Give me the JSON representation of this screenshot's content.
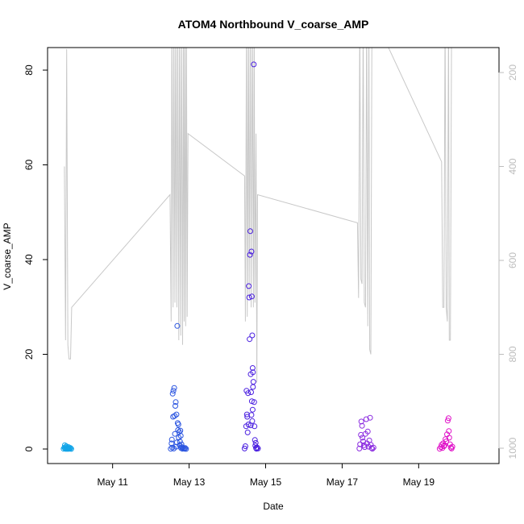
{
  "chart_data": {
    "type": "scatter",
    "title": "ATOM4 Northbound V_coarse_AMP",
    "xlabel": "Date",
    "ylabel": "V_coarse_AMP",
    "x_start_label": "May 9",
    "xlim_days": [
      9.3,
      21.1
    ],
    "ylim": [
      0,
      85
    ],
    "y2lim_reversed": [
      100,
      1060
    ],
    "x_ticks": [
      {
        "day": 11,
        "label": "May 11"
      },
      {
        "day": 13,
        "label": "May 13"
      },
      {
        "day": 15,
        "label": "May 15"
      },
      {
        "day": 17,
        "label": "May 17"
      },
      {
        "day": 19,
        "label": "May 19"
      }
    ],
    "y_ticks": [
      0,
      20,
      40,
      60,
      80
    ],
    "y2_ticks": [
      200,
      400,
      600,
      800,
      1000
    ],
    "depth_line_color": "#c8c8c8",
    "depth_line": [
      [
        9.74,
        400
      ],
      [
        9.77,
        770
      ],
      [
        9.8,
        150
      ],
      [
        9.83,
        780
      ],
      [
        9.86,
        810
      ],
      [
        9.9,
        810
      ],
      [
        9.93,
        700
      ],
      [
        12.5,
        460
      ],
      [
        12.53,
        730
      ],
      [
        12.55,
        80
      ],
      [
        12.58,
        700
      ],
      [
        12.6,
        80
      ],
      [
        12.63,
        690
      ],
      [
        12.65,
        80
      ],
      [
        12.68,
        700
      ],
      [
        12.7,
        80
      ],
      [
        12.73,
        770
      ],
      [
        12.75,
        80
      ],
      [
        12.78,
        760
      ],
      [
        12.8,
        80
      ],
      [
        12.83,
        780
      ],
      [
        12.85,
        80
      ],
      [
        12.87,
        730
      ],
      [
        12.89,
        80
      ],
      [
        12.91,
        740
      ],
      [
        12.93,
        80
      ],
      [
        12.95,
        720
      ],
      [
        12.97,
        330
      ],
      [
        14.45,
        420
      ],
      [
        14.47,
        730
      ],
      [
        14.5,
        80
      ],
      [
        14.52,
        720
      ],
      [
        14.55,
        80
      ],
      [
        14.57,
        680
      ],
      [
        14.6,
        80
      ],
      [
        14.62,
        700
      ],
      [
        14.65,
        80
      ],
      [
        14.68,
        700
      ],
      [
        14.7,
        80
      ],
      [
        14.72,
        690
      ],
      [
        14.75,
        330
      ],
      [
        14.77,
        860
      ],
      [
        14.79,
        460
      ],
      [
        17.4,
        520
      ],
      [
        17.43,
        680
      ],
      [
        17.46,
        80
      ],
      [
        17.49,
        640
      ],
      [
        17.52,
        650
      ],
      [
        17.55,
        80
      ],
      [
        17.58,
        690
      ],
      [
        17.61,
        700
      ],
      [
        17.64,
        80
      ],
      [
        17.67,
        740
      ],
      [
        17.7,
        80
      ],
      [
        17.72,
        790
      ],
      [
        17.75,
        800
      ],
      [
        17.78,
        80
      ],
      [
        17.8,
        80
      ],
      [
        17.83,
        80
      ],
      [
        19.6,
        390
      ],
      [
        19.63,
        700
      ],
      [
        19.66,
        700
      ],
      [
        19.69,
        80
      ],
      [
        19.72,
        700
      ],
      [
        19.75,
        730
      ],
      [
        19.78,
        80
      ],
      [
        19.8,
        770
      ],
      [
        19.83,
        770
      ],
      [
        19.86,
        80
      ]
    ],
    "series": [
      {
        "color": "#12a5e8",
        "points": [
          [
            9.72,
            0.05
          ],
          [
            9.74,
            0.3
          ],
          [
            9.75,
            0.8
          ],
          [
            9.76,
            0.1
          ],
          [
            9.77,
            0.4
          ],
          [
            9.78,
            0.02
          ],
          [
            9.79,
            0.6
          ],
          [
            9.8,
            0.2
          ],
          [
            9.81,
            0.05
          ],
          [
            9.82,
            0.3
          ],
          [
            9.83,
            0.1
          ],
          [
            9.84,
            0.02
          ],
          [
            9.85,
            0.4
          ],
          [
            9.86,
            0.08
          ],
          [
            9.87,
            0.15
          ],
          [
            9.88,
            0.05
          ],
          [
            9.9,
            0.2
          ],
          [
            9.92,
            0.01
          ]
        ]
      },
      {
        "color": "#2b55e0",
        "points": [
          [
            12.52,
            0.05
          ],
          [
            12.54,
            1.2
          ],
          [
            12.55,
            2.0
          ],
          [
            12.56,
            0.3
          ],
          [
            12.57,
            11.7
          ],
          [
            12.58,
            6.8
          ],
          [
            12.59,
            12.3
          ],
          [
            12.6,
            0.1
          ],
          [
            12.61,
            12.9
          ],
          [
            12.62,
            7.0
          ],
          [
            12.63,
            3.2
          ],
          [
            12.64,
            9.1
          ],
          [
            12.65,
            9.9
          ],
          [
            12.66,
            0.5
          ],
          [
            12.67,
            7.3
          ],
          [
            12.68,
            1.4
          ],
          [
            12.69,
            26.0
          ],
          [
            12.7,
            5.5
          ],
          [
            12.71,
            4.0
          ],
          [
            12.72,
            5.2
          ],
          [
            12.73,
            2.4
          ],
          [
            12.74,
            3.6
          ],
          [
            12.75,
            0.8
          ],
          [
            12.76,
            1.6
          ],
          [
            12.77,
            3.9
          ],
          [
            12.78,
            2.8
          ],
          [
            12.79,
            0.2
          ],
          [
            12.8,
            1.0
          ],
          [
            12.81,
            0.4
          ],
          [
            12.82,
            0.05
          ],
          [
            12.84,
            0.3
          ],
          [
            12.86,
            0.1
          ],
          [
            12.88,
            0.05
          ],
          [
            12.9,
            0.2
          ],
          [
            12.92,
            0.02
          ]
        ]
      },
      {
        "color": "#4a1fe0",
        "points": [
          [
            14.45,
            0.1
          ],
          [
            14.47,
            0.6
          ],
          [
            14.49,
            4.8
          ],
          [
            14.5,
            12.3
          ],
          [
            14.51,
            7.3
          ],
          [
            14.52,
            6.8
          ],
          [
            14.53,
            3.5
          ],
          [
            14.54,
            11.8
          ],
          [
            14.55,
            5.2
          ],
          [
            14.56,
            34.4
          ],
          [
            14.57,
            32.0
          ],
          [
            14.58,
            23.2
          ],
          [
            14.59,
            41.0
          ],
          [
            14.6,
            46.0
          ],
          [
            14.61,
            15.8
          ],
          [
            14.62,
            12.0
          ],
          [
            14.63,
            41.7
          ],
          [
            14.64,
            32.2
          ],
          [
            14.65,
            24.0
          ],
          [
            14.66,
            17.1
          ],
          [
            14.67,
            16.2
          ],
          [
            14.68,
            14.2
          ],
          [
            14.69,
            81.2
          ],
          [
            14.7,
            9.9
          ],
          [
            14.71,
            4.8
          ],
          [
            14.72,
            1.9
          ],
          [
            14.73,
            0.7
          ],
          [
            14.74,
            1.3
          ],
          [
            14.75,
            0.2
          ],
          [
            14.76,
            0.05
          ],
          [
            14.78,
            0.3
          ],
          [
            14.8,
            0.1
          ],
          [
            14.61,
            5.0
          ],
          [
            14.63,
            7.2
          ],
          [
            14.65,
            5.9
          ],
          [
            14.66,
            8.3
          ],
          [
            14.64,
            10.1
          ],
          [
            14.67,
            13.1
          ]
        ]
      },
      {
        "color": "#8b2be0",
        "points": [
          [
            17.45,
            0.1
          ],
          [
            17.47,
            1.0
          ],
          [
            17.49,
            3.0
          ],
          [
            17.5,
            5.8
          ],
          [
            17.52,
            4.9
          ],
          [
            17.53,
            2.4
          ],
          [
            17.55,
            1.6
          ],
          [
            17.57,
            0.8
          ],
          [
            17.59,
            0.4
          ],
          [
            17.61,
            3.2
          ],
          [
            17.63,
            6.3
          ],
          [
            17.65,
            1.2
          ],
          [
            17.67,
            3.7
          ],
          [
            17.69,
            0.5
          ],
          [
            17.71,
            1.8
          ],
          [
            17.73,
            6.6
          ],
          [
            17.75,
            0.9
          ],
          [
            17.77,
            0.2
          ],
          [
            17.79,
            0.05
          ],
          [
            17.82,
            0.3
          ]
        ]
      },
      {
        "color": "#e010c8",
        "points": [
          [
            19.55,
            0.05
          ],
          [
            19.58,
            0.4
          ],
          [
            19.6,
            0.9
          ],
          [
            19.62,
            0.2
          ],
          [
            19.64,
            1.2
          ],
          [
            19.66,
            0.6
          ],
          [
            19.68,
            0.8
          ],
          [
            19.7,
            2.1
          ],
          [
            19.72,
            1.6
          ],
          [
            19.74,
            3.1
          ],
          [
            19.76,
            6.0
          ],
          [
            19.78,
            6.5
          ],
          [
            19.79,
            3.8
          ],
          [
            19.8,
            2.4
          ],
          [
            19.82,
            1.0
          ],
          [
            19.84,
            0.3
          ],
          [
            19.86,
            0.1
          ],
          [
            19.88,
            0.5
          ]
        ]
      }
    ]
  }
}
